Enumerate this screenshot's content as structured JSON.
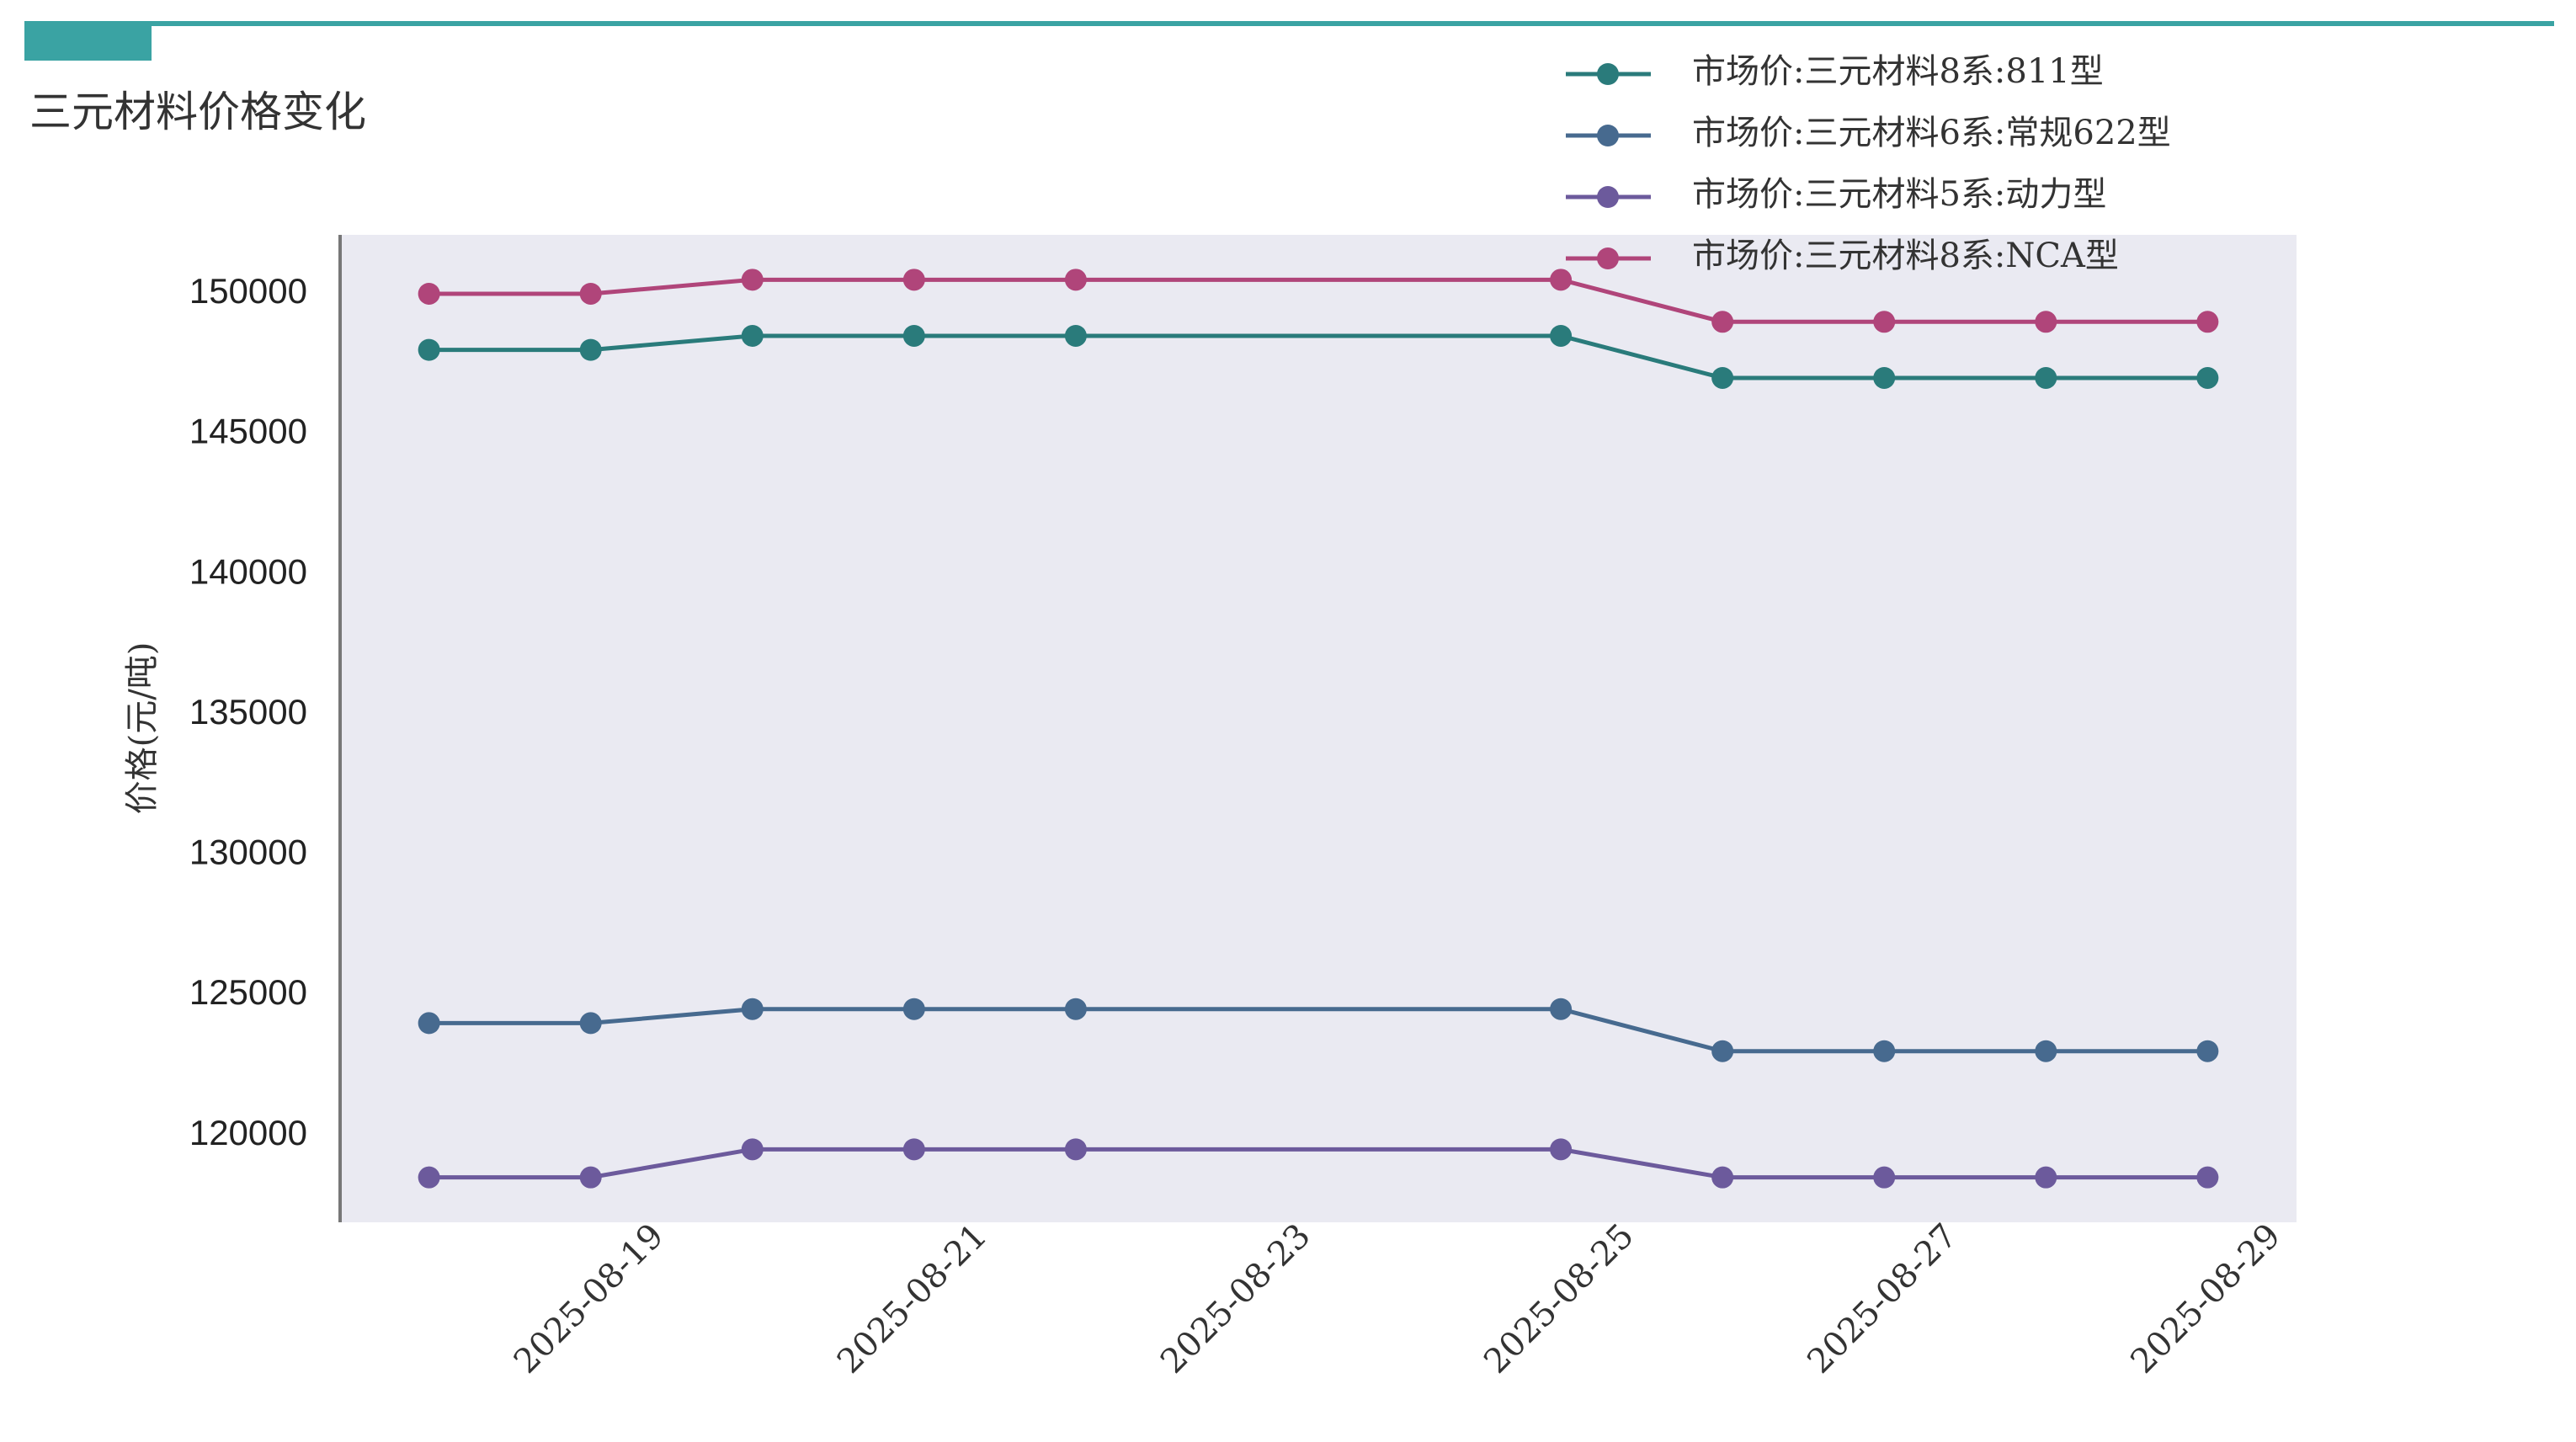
{
  "chart_data": {
    "type": "line",
    "title": "三元材料价格变化",
    "y_label": "价格(元/吨)",
    "x": [
      "2025-08-18",
      "2025-08-19",
      "2025-08-20",
      "2025-08-21",
      "2025-08-22",
      "2025-08-25",
      "2025-08-26",
      "2025-08-27",
      "2025-08-28",
      "2025-08-29"
    ],
    "series": [
      {
        "name": "市场价:三元材料8系:811型",
        "color": "#2a7b7b",
        "values": [
          148000,
          148000,
          148500,
          148500,
          148500,
          148500,
          147000,
          147000,
          147000,
          147000
        ]
      },
      {
        "name": "市场价:三元材料6系:常规622型",
        "color": "#476a8f",
        "values": [
          124000,
          124000,
          124500,
          124500,
          124500,
          124500,
          123000,
          123000,
          123000,
          123000
        ]
      },
      {
        "name": "市场价:三元材料5系:动力型",
        "color": "#6c5a9c",
        "values": [
          118500,
          118500,
          119500,
          119500,
          119500,
          119500,
          118500,
          118500,
          118500,
          118500
        ]
      },
      {
        "name": "市场价:三元材料8系:NCA型",
        "color": "#b0457a",
        "values": [
          150000,
          150000,
          150500,
          150500,
          150500,
          150500,
          149000,
          149000,
          149000,
          149000
        ]
      }
    ],
    "xlim": [
      "2025-08-18",
      "2025-08-29"
    ],
    "xticks": [
      "2025-08-19",
      "2025-08-21",
      "2025-08-23",
      "2025-08-25",
      "2025-08-27",
      "2025-08-29"
    ],
    "ylim": [
      116900,
      152100
    ],
    "yticks": [
      120000,
      125000,
      130000,
      135000,
      140000,
      145000,
      150000
    ],
    "grid": false,
    "legend": "upper right",
    "background": "#eaeaf2"
  }
}
